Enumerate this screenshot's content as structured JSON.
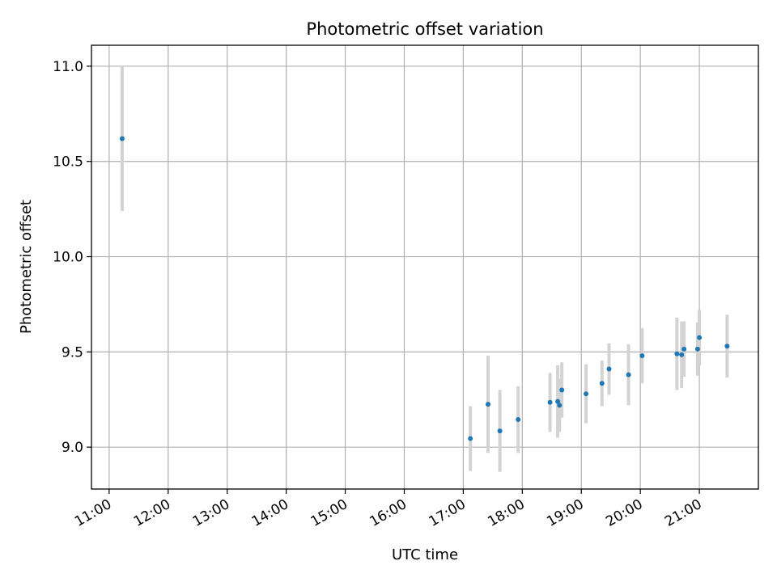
{
  "chart_data": {
    "type": "scatter",
    "title": "Photometric offset variation",
    "xlabel": "UTC time",
    "ylabel": "Photometric offset",
    "x_unit": "hours UTC",
    "xlim": [
      10.7,
      22.0
    ],
    "ylim": [
      8.78,
      11.11
    ],
    "x_ticks": [
      11,
      12,
      13,
      14,
      15,
      16,
      17,
      18,
      19,
      20,
      21
    ],
    "x_tick_labels": [
      "11:00",
      "12:00",
      "13:00",
      "14:00",
      "15:00",
      "16:00",
      "17:00",
      "18:00",
      "19:00",
      "20:00",
      "21:00"
    ],
    "y_ticks": [
      9.0,
      9.5,
      10.0,
      10.5,
      11.0
    ],
    "y_tick_labels": [
      "9.0",
      "9.5",
      "10.0",
      "10.5",
      "11.0"
    ],
    "grid": true,
    "colors": {
      "point": "#1f77b4",
      "errorbar": "#d3d3d3",
      "grid": "#b0b0b0"
    },
    "points": [
      {
        "x": 11.22,
        "y": 10.62,
        "err": 0.38
      },
      {
        "x": 17.12,
        "y": 9.045,
        "err": 0.17
      },
      {
        "x": 17.42,
        "y": 9.225,
        "err": 0.255
      },
      {
        "x": 17.62,
        "y": 9.085,
        "err": 0.215
      },
      {
        "x": 17.93,
        "y": 9.145,
        "err": 0.175
      },
      {
        "x": 18.47,
        "y": 9.235,
        "err": 0.155
      },
      {
        "x": 18.6,
        "y": 9.24,
        "err": 0.19
      },
      {
        "x": 18.63,
        "y": 9.22,
        "err": 0.14
      },
      {
        "x": 18.67,
        "y": 9.3,
        "err": 0.145
      },
      {
        "x": 19.08,
        "y": 9.28,
        "err": 0.155
      },
      {
        "x": 19.35,
        "y": 9.335,
        "err": 0.12
      },
      {
        "x": 19.47,
        "y": 9.41,
        "err": 0.135
      },
      {
        "x": 19.8,
        "y": 9.38,
        "err": 0.16
      },
      {
        "x": 20.03,
        "y": 9.48,
        "err": 0.145
      },
      {
        "x": 20.62,
        "y": 9.49,
        "err": 0.19
      },
      {
        "x": 20.7,
        "y": 9.485,
        "err": 0.175
      },
      {
        "x": 20.74,
        "y": 9.515,
        "err": 0.145
      },
      {
        "x": 20.97,
        "y": 9.515,
        "err": 0.14
      },
      {
        "x": 21.0,
        "y": 9.575,
        "err": 0.145
      },
      {
        "x": 21.47,
        "y": 9.53,
        "err": 0.165
      }
    ]
  }
}
